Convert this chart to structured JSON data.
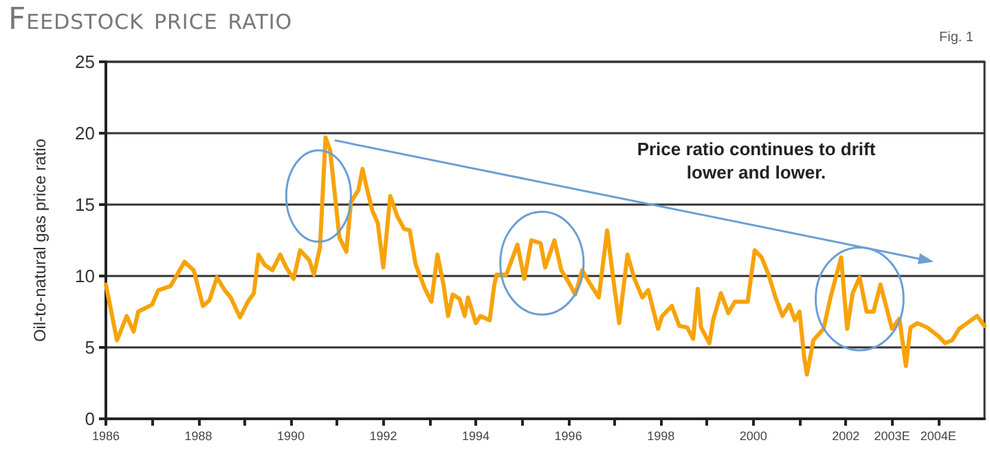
{
  "chart_data": {
    "type": "line",
    "title": "Feedstock price ratio",
    "ylabel": "Oil-to-natural gas price ratio",
    "annotations": [
      "Fig. 1",
      "Price ratio continues to drift lower and lower."
    ],
    "x": [
      1986.0,
      1986.24,
      1986.45,
      1986.6,
      1986.7,
      1987.0,
      1987.13,
      1987.4,
      1987.7,
      1987.9,
      1988.1,
      1988.24,
      1988.4,
      1988.57,
      1988.7,
      1988.9,
      1989.07,
      1989.2,
      1989.3,
      1989.43,
      1989.6,
      1989.77,
      1989.9,
      1990.06,
      1990.2,
      1990.4,
      1990.5,
      1990.63,
      1990.75,
      1990.85,
      1991.05,
      1991.2,
      1991.3,
      1991.46,
      1991.55,
      1991.64,
      1991.76,
      1991.88,
      1992.0,
      1992.15,
      1992.3,
      1992.45,
      1992.57,
      1992.7,
      1992.9,
      1993.04,
      1993.17,
      1993.3,
      1993.4,
      1993.5,
      1993.65,
      1993.76,
      1993.83,
      1994.0,
      1994.1,
      1994.3,
      1994.4,
      1994.45,
      1994.66,
      1994.9,
      1995.05,
      1995.2,
      1995.4,
      1995.5,
      1995.7,
      1995.85,
      1996.0,
      1996.15,
      1996.3,
      1996.48,
      1996.66,
      1996.84,
      1996.96,
      1997.1,
      1997.28,
      1997.43,
      1997.6,
      1997.73,
      1997.94,
      1998.03,
      1998.24,
      1998.4,
      1998.57,
      1998.7,
      1998.8,
      1998.87,
      1999.05,
      1999.13,
      1999.3,
      1999.46,
      1999.6,
      1999.88,
      2000.03,
      2000.18,
      2000.33,
      2000.48,
      2000.63,
      2000.78,
      2000.9,
      2001.0,
      2001.1,
      2001.16,
      2001.3,
      2001.52,
      2001.67,
      2001.9,
      2002.03,
      2002.15,
      2002.3,
      2002.45,
      2002.6,
      2002.75,
      2003.0,
      2003.16,
      2003.3,
      2003.4,
      2003.55,
      2003.76,
      2004.0,
      2004.15,
      2004.3,
      2004.45,
      2004.84,
      2005.0
    ],
    "series": [
      {
        "color": "#f7a30a",
        "values": [
          9.4,
          5.5,
          7.2,
          6.1,
          7.5,
          8.0,
          9.0,
          9.3,
          11.0,
          10.4,
          7.9,
          8.3,
          9.9,
          9.0,
          8.5,
          7.1,
          8.2,
          8.8,
          11.5,
          10.8,
          10.4,
          11.5,
          10.6,
          9.8,
          11.8,
          11.1,
          10.1,
          12.0,
          19.7,
          18.8,
          12.7,
          11.7,
          15.2,
          16.0,
          17.5,
          16.2,
          14.6,
          13.7,
          10.6,
          15.6,
          14.2,
          13.3,
          13.2,
          10.8,
          9.1,
          8.2,
          11.5,
          9.4,
          7.2,
          8.7,
          8.4,
          7.2,
          8.5,
          6.7,
          7.2,
          6.9,
          9.4,
          10.1,
          10.1,
          12.2,
          9.8,
          12.5,
          12.3,
          10.6,
          12.5,
          10.4,
          9.6,
          8.7,
          10.4,
          9.4,
          8.5,
          13.2,
          10.1,
          6.7,
          11.5,
          9.8,
          8.5,
          9.0,
          6.3,
          7.2,
          7.9,
          6.5,
          6.4,
          5.6,
          9.1,
          6.4,
          5.3,
          6.9,
          8.8,
          7.4,
          8.2,
          8.2,
          11.8,
          11.3,
          10.1,
          8.5,
          7.2,
          8.0,
          6.9,
          7.5,
          4.3,
          3.1,
          5.5,
          6.3,
          8.5,
          11.3,
          6.3,
          8.8,
          9.9,
          7.5,
          7.5,
          9.4,
          6.3,
          7.0,
          3.7,
          6.4,
          6.7,
          6.4,
          5.8,
          5.3,
          5.5,
          6.3,
          7.2,
          6.5
        ]
      }
    ],
    "xlim": [
      1986,
      2005
    ],
    "xticks": [
      1986,
      {
        "value": 1987,
        "label": null
      },
      1988,
      {
        "value": 1989,
        "label": null
      },
      1990,
      {
        "value": 1991,
        "label": null
      },
      1992,
      {
        "value": 1993,
        "label": null
      },
      1994,
      {
        "value": 1995,
        "label": null
      },
      1996,
      {
        "value": 1997,
        "label": null
      },
      1998,
      {
        "value": 1999,
        "label": null
      },
      2000,
      {
        "value": 2001,
        "label": null
      },
      2002,
      {
        "value": 2003,
        "label": "2003E"
      },
      {
        "value": 2004,
        "label": "2004E"
      }
    ],
    "ylim": [
      0,
      25
    ],
    "yticks": [
      0,
      5,
      10,
      15,
      20,
      25
    ],
    "grid": "y",
    "marker": "none",
    "line_style": "solid"
  }
}
